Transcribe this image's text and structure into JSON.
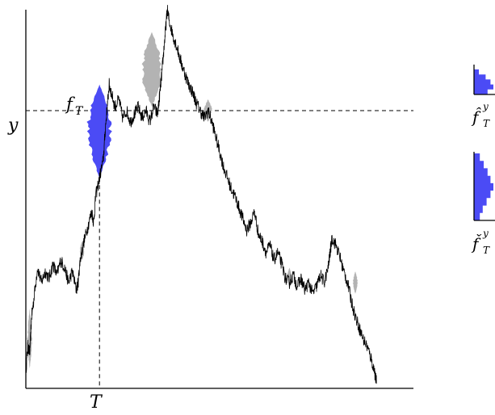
{
  "labels": {
    "y_axis_symbol": "y",
    "x_axis_symbol": "T",
    "f_main": "f",
    "f_main_sub": "T",
    "f_hat": "f̂",
    "f_hat_sup": "y",
    "f_hat_sub": "T",
    "f_check": "f̌",
    "f_check_sup": "y",
    "f_check_sub": "T"
  },
  "colors": {
    "path": "#000000",
    "highlight": "#4b4bf5",
    "gray_blob": "#b3b3b3",
    "axis": "#000000"
  },
  "path_points": [
    [
      0.0,
      0.03
    ],
    [
      0.005,
      0.1
    ],
    [
      0.01,
      0.08
    ],
    [
      0.015,
      0.18
    ],
    [
      0.02,
      0.22
    ],
    [
      0.03,
      0.31
    ],
    [
      0.04,
      0.27
    ],
    [
      0.05,
      0.3
    ],
    [
      0.06,
      0.28
    ],
    [
      0.07,
      0.32
    ],
    [
      0.08,
      0.29
    ],
    [
      0.09,
      0.33
    ],
    [
      0.1,
      0.31
    ],
    [
      0.11,
      0.27
    ],
    [
      0.12,
      0.3
    ],
    [
      0.13,
      0.25
    ],
    [
      0.135,
      0.27
    ],
    [
      0.14,
      0.33
    ],
    [
      0.15,
      0.38
    ],
    [
      0.16,
      0.42
    ],
    [
      0.17,
      0.46
    ],
    [
      0.175,
      0.43
    ],
    [
      0.18,
      0.5
    ],
    [
      0.19,
      0.55
    ],
    [
      0.2,
      0.6
    ],
    [
      0.205,
      0.68
    ],
    [
      0.21,
      0.74
    ],
    [
      0.215,
      0.8
    ],
    [
      0.22,
      0.78
    ],
    [
      0.23,
      0.74
    ],
    [
      0.24,
      0.76
    ],
    [
      0.25,
      0.71
    ],
    [
      0.26,
      0.73
    ],
    [
      0.27,
      0.7
    ],
    [
      0.28,
      0.72
    ],
    [
      0.29,
      0.74
    ],
    [
      0.3,
      0.71
    ],
    [
      0.31,
      0.73
    ],
    [
      0.32,
      0.7
    ],
    [
      0.33,
      0.74
    ],
    [
      0.34,
      0.72
    ],
    [
      0.345,
      0.77
    ],
    [
      0.35,
      0.82
    ],
    [
      0.355,
      0.88
    ],
    [
      0.36,
      0.94
    ],
    [
      0.365,
      1.0
    ],
    [
      0.37,
      0.97
    ],
    [
      0.38,
      0.93
    ],
    [
      0.39,
      0.9
    ],
    [
      0.4,
      0.86
    ],
    [
      0.41,
      0.83
    ],
    [
      0.42,
      0.8
    ],
    [
      0.43,
      0.78
    ],
    [
      0.44,
      0.75
    ],
    [
      0.45,
      0.73
    ],
    [
      0.46,
      0.71
    ],
    [
      0.47,
      0.73
    ],
    [
      0.48,
      0.7
    ],
    [
      0.49,
      0.66
    ],
    [
      0.5,
      0.62
    ],
    [
      0.51,
      0.58
    ],
    [
      0.52,
      0.55
    ],
    [
      0.53,
      0.52
    ],
    [
      0.54,
      0.5
    ],
    [
      0.55,
      0.47
    ],
    [
      0.56,
      0.44
    ],
    [
      0.57,
      0.41
    ],
    [
      0.58,
      0.43
    ],
    [
      0.59,
      0.46
    ],
    [
      0.6,
      0.4
    ],
    [
      0.61,
      0.38
    ],
    [
      0.62,
      0.35
    ],
    [
      0.63,
      0.37
    ],
    [
      0.64,
      0.33
    ],
    [
      0.65,
      0.35
    ],
    [
      0.66,
      0.32
    ],
    [
      0.67,
      0.28
    ],
    [
      0.68,
      0.27
    ],
    [
      0.69,
      0.29
    ],
    [
      0.7,
      0.26
    ],
    [
      0.71,
      0.28
    ],
    [
      0.72,
      0.25
    ],
    [
      0.73,
      0.27
    ],
    [
      0.74,
      0.24
    ],
    [
      0.75,
      0.26
    ],
    [
      0.76,
      0.29
    ],
    [
      0.77,
      0.27
    ],
    [
      0.78,
      0.31
    ],
    [
      0.785,
      0.35
    ],
    [
      0.79,
      0.39
    ],
    [
      0.8,
      0.37
    ],
    [
      0.81,
      0.34
    ],
    [
      0.82,
      0.3
    ],
    [
      0.83,
      0.27
    ],
    [
      0.84,
      0.22
    ],
    [
      0.85,
      0.18
    ],
    [
      0.86,
      0.15
    ],
    [
      0.87,
      0.12
    ],
    [
      0.88,
      0.1
    ],
    [
      0.89,
      0.07
    ],
    [
      0.9,
      0.03
    ],
    [
      0.905,
      0.0
    ]
  ],
  "blob_highlight": {
    "t": 0.19,
    "y_top": 0.8,
    "y_bottom": 0.55,
    "max_width": 0.03
  },
  "blobs_gray": [
    {
      "t": 0.325,
      "y_top": 0.94,
      "y_bottom": 0.74,
      "max_width": 0.026
    },
    {
      "t": 0.47,
      "y_top": 0.76,
      "y_bottom": 0.7,
      "max_width": 0.01
    },
    {
      "t": 0.01,
      "y_top": 0.2,
      "y_bottom": 0.04,
      "max_width": 0.006
    },
    {
      "t": 0.145,
      "y_top": 0.38,
      "y_bottom": 0.33,
      "max_width": 0.006
    },
    {
      "t": 0.68,
      "y_top": 0.31,
      "y_bottom": 0.26,
      "max_width": 0.006
    },
    {
      "t": 0.85,
      "y_top": 0.3,
      "y_bottom": 0.24,
      "max_width": 0.006
    }
  ],
  "y_level": 0.73,
  "T_position": 0.19,
  "mini_hat_profile": [
    0.25,
    0.6,
    0.85,
    1.0,
    0.7
  ],
  "mini_check_profile": [
    0.3,
    0.5,
    0.7,
    0.85,
    1.0,
    0.85,
    0.65,
    0.45,
    0.3
  ]
}
